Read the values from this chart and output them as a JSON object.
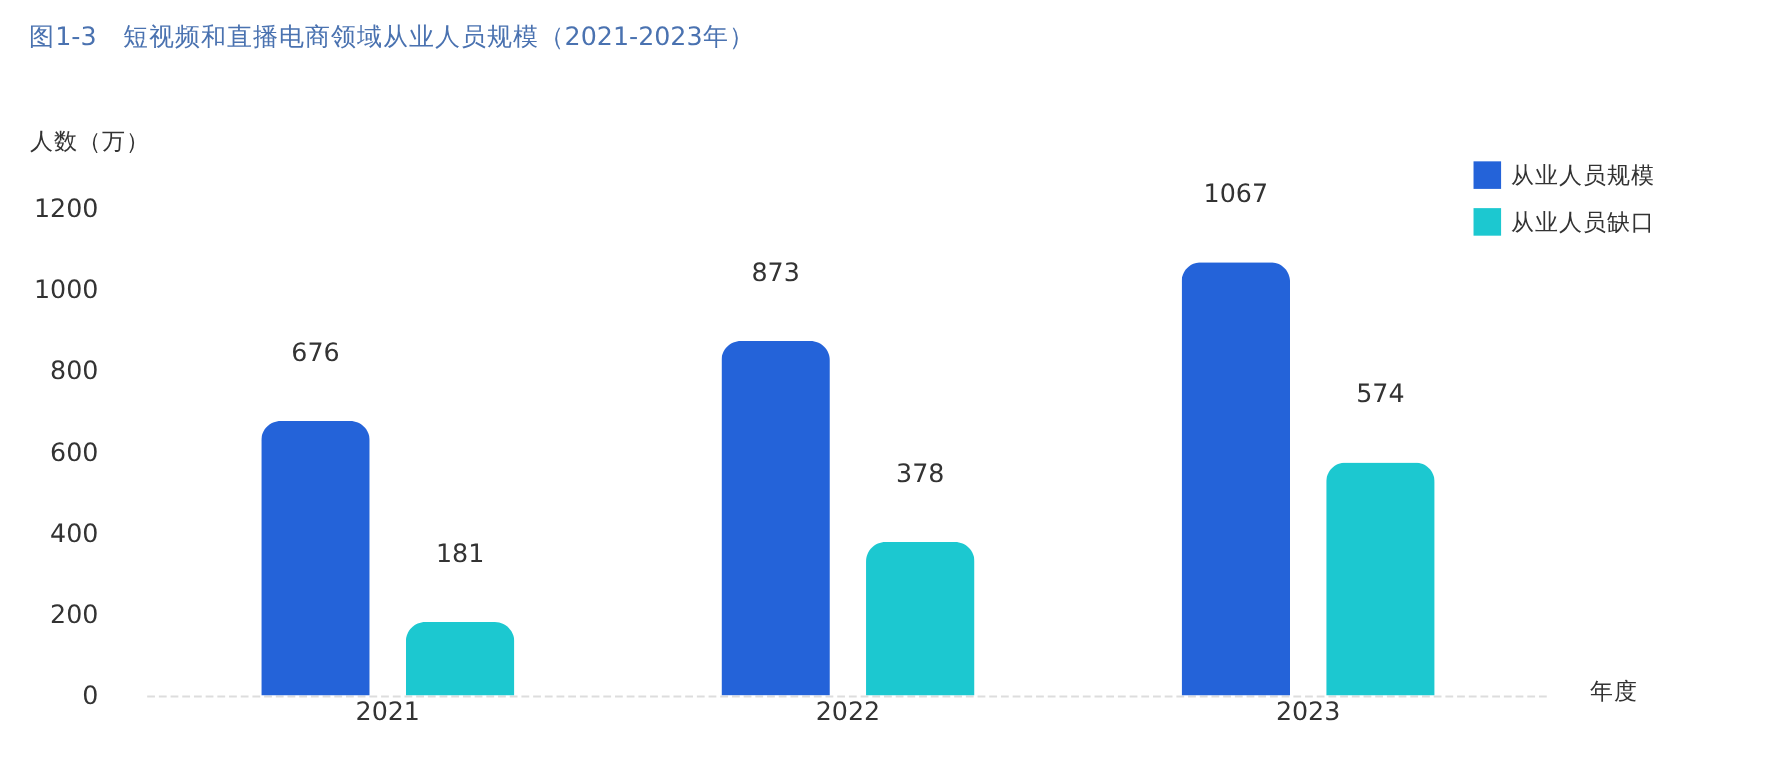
{
  "chart_data": {
    "type": "bar",
    "title": "图1-3　短视频和直播电商领域从业人员规模（2021-2023年）",
    "xlabel": "年度",
    "ylabel": "人数（万）",
    "categories": [
      "2021",
      "2022",
      "2023"
    ],
    "series": [
      {
        "name": "从业人员规模",
        "color": "#2463d9",
        "values": [
          676,
          873,
          1067
        ]
      },
      {
        "name": "从业人员缺口",
        "color": "#1cc8d0",
        "values": [
          181,
          378,
          574
        ]
      }
    ],
    "ylim": [
      0,
      1200
    ],
    "yticks": [
      0,
      200,
      400,
      600,
      800,
      1000,
      1200
    ],
    "grid": false,
    "legend": "top right",
    "data_labels": true
  }
}
